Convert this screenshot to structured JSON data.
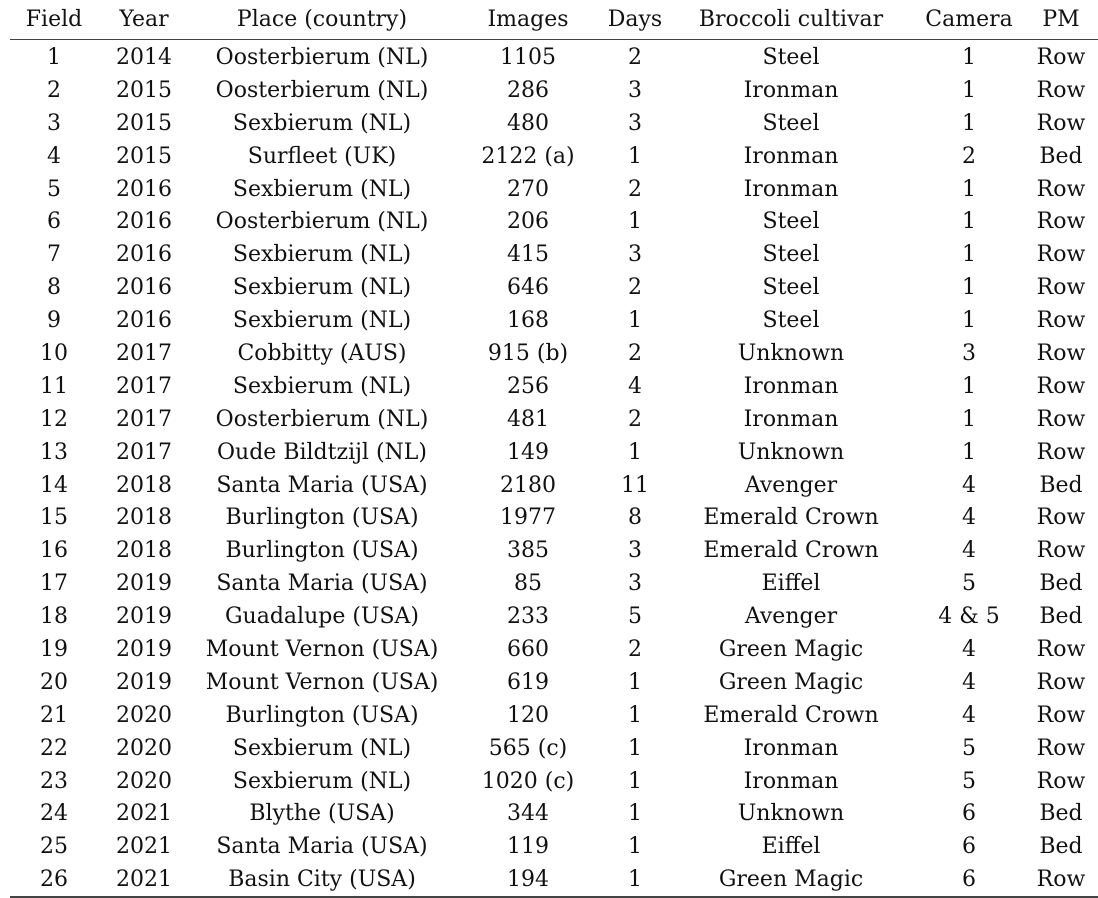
{
  "table": {
    "headers": [
      "Field",
      "Year",
      "Place (country)",
      "Images",
      "Days",
      "Broccoli cultivar",
      "Camera",
      "PM"
    ],
    "rows": [
      [
        "1",
        "2014",
        "Oosterbierum (NL)",
        "1105",
        "2",
        "Steel",
        "1",
        "Row"
      ],
      [
        "2",
        "2015",
        "Oosterbierum (NL)",
        "286",
        "3",
        "Ironman",
        "1",
        "Row"
      ],
      [
        "3",
        "2015",
        "Sexbierum (NL)",
        "480",
        "3",
        "Steel",
        "1",
        "Row"
      ],
      [
        "4",
        "2015",
        "Surfleet (UK)",
        "2122 (a)",
        "1",
        "Ironman",
        "2",
        "Bed"
      ],
      [
        "5",
        "2016",
        "Sexbierum (NL)",
        "270",
        "2",
        "Ironman",
        "1",
        "Row"
      ],
      [
        "6",
        "2016",
        "Oosterbierum (NL)",
        "206",
        "1",
        "Steel",
        "1",
        "Row"
      ],
      [
        "7",
        "2016",
        "Sexbierum (NL)",
        "415",
        "3",
        "Steel",
        "1",
        "Row"
      ],
      [
        "8",
        "2016",
        "Sexbierum (NL)",
        "646",
        "2",
        "Steel",
        "1",
        "Row"
      ],
      [
        "9",
        "2016",
        "Sexbierum (NL)",
        "168",
        "1",
        "Steel",
        "1",
        "Row"
      ],
      [
        "10",
        "2017",
        "Cobbitty (AUS)",
        "915 (b)",
        "2",
        "Unknown",
        "3",
        "Row"
      ],
      [
        "11",
        "2017",
        "Sexbierum (NL)",
        "256",
        "4",
        "Ironman",
        "1",
        "Row"
      ],
      [
        "12",
        "2017",
        "Oosterbierum (NL)",
        "481",
        "2",
        "Ironman",
        "1",
        "Row"
      ],
      [
        "13",
        "2017",
        "Oude Bildtzijl (NL)",
        "149",
        "1",
        "Unknown",
        "1",
        "Row"
      ],
      [
        "14",
        "2018",
        "Santa Maria (USA)",
        "2180",
        "11",
        "Avenger",
        "4",
        "Bed"
      ],
      [
        "15",
        "2018",
        "Burlington (USA)",
        "1977",
        "8",
        "Emerald Crown",
        "4",
        "Row"
      ],
      [
        "16",
        "2018",
        "Burlington (USA)",
        "385",
        "3",
        "Emerald Crown",
        "4",
        "Row"
      ],
      [
        "17",
        "2019",
        "Santa Maria (USA)",
        "85",
        "3",
        "Eiffel",
        "5",
        "Bed"
      ],
      [
        "18",
        "2019",
        "Guadalupe (USA)",
        "233",
        "5",
        "Avenger",
        "4 & 5",
        "Bed"
      ],
      [
        "19",
        "2019",
        "Mount Vernon (USA)",
        "660",
        "2",
        "Green Magic",
        "4",
        "Row"
      ],
      [
        "20",
        "2019",
        "Mount Vernon (USA)",
        "619",
        "1",
        "Green Magic",
        "4",
        "Row"
      ],
      [
        "21",
        "2020",
        "Burlington (USA)",
        "120",
        "1",
        "Emerald Crown",
        "4",
        "Row"
      ],
      [
        "22",
        "2020",
        "Sexbierum (NL)",
        "565 (c)",
        "1",
        "Ironman",
        "5",
        "Row"
      ],
      [
        "23",
        "2020",
        "Sexbierum (NL)",
        "1020 (c)",
        "1",
        "Ironman",
        "5",
        "Row"
      ],
      [
        "24",
        "2021",
        "Blythe (USA)",
        "344",
        "1",
        "Unknown",
        "6",
        "Bed"
      ],
      [
        "25",
        "2021",
        "Santa Maria (USA)",
        "119",
        "1",
        "Eiffel",
        "6",
        "Bed"
      ],
      [
        "26",
        "2021",
        "Basin City (USA)",
        "194",
        "1",
        "Green Magic",
        "6",
        "Row"
      ]
    ]
  }
}
